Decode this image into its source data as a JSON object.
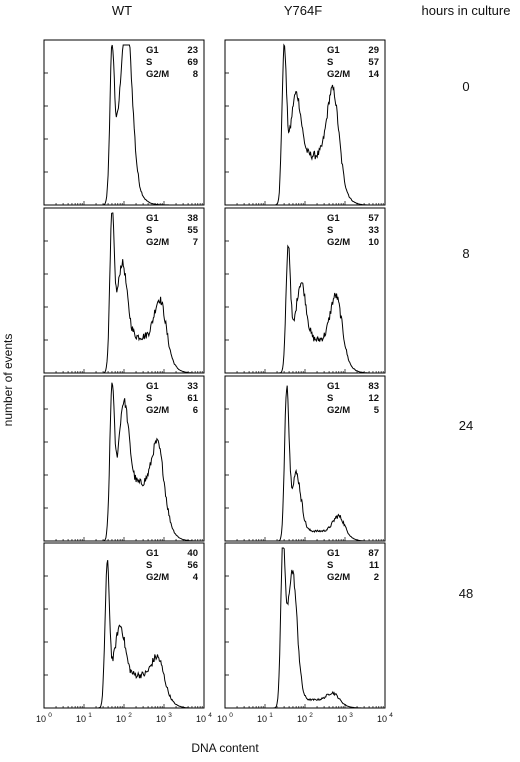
{
  "header": {
    "wt_label": "WT",
    "mutant_label": "Y764F",
    "time_header": "hours in culture"
  },
  "y_axis_label": "number of events",
  "x_axis_label": "DNA content",
  "time_points": [
    "0",
    "8",
    "24",
    "48"
  ],
  "x_tick_labels": [
    {
      "base": "10",
      "exp": "0"
    },
    {
      "base": "10",
      "exp": "1"
    },
    {
      "base": "10",
      "exp": "2"
    },
    {
      "base": "10",
      "exp": "3"
    },
    {
      "base": "10",
      "exp": "4"
    }
  ],
  "stat_names": [
    "G1",
    "S",
    "G2/M"
  ],
  "chart_data": [
    {
      "type": "area",
      "column": "WT",
      "hours": "0",
      "xscale": "log",
      "xlim": [
        1,
        10000
      ],
      "stats": {
        "G1": "23",
        "S": "69",
        "G2/M": "8"
      },
      "peak_x": 50,
      "peak_height": 0.85,
      "shoulder_x": 120,
      "shoulder_height": 0.55,
      "s_plateau": 0.42,
      "g2_x": 110,
      "g2_height": 0.26,
      "tail_end": 8000
    },
    {
      "type": "area",
      "column": "Y764F",
      "hours": "0",
      "xscale": "log",
      "xlim": [
        1,
        10000
      ],
      "stats": {
        "G1": "29",
        "S": "57",
        "G2/M": "14"
      },
      "peak_x": 30,
      "peak_height": 0.88,
      "shoulder_x": 60,
      "shoulder_height": 0.38,
      "s_plateau": 0.3,
      "g2_x": 500,
      "g2_height": 0.45,
      "tail_end": 4000
    },
    {
      "type": "area",
      "column": "WT",
      "hours": "8",
      "xscale": "log",
      "xlim": [
        1,
        10000
      ],
      "stats": {
        "G1": "38",
        "S": "55",
        "G2/M": "7"
      },
      "peak_x": 50,
      "peak_height": 0.88,
      "shoulder_x": 90,
      "shoulder_height": 0.45,
      "s_plateau": 0.22,
      "g2_x": 800,
      "g2_height": 0.26,
      "tail_end": 6000
    },
    {
      "type": "area",
      "column": "Y764F",
      "hours": "8",
      "xscale": "log",
      "xlim": [
        1,
        10000
      ],
      "stats": {
        "G1": "57",
        "S": "33",
        "G2/M": "10"
      },
      "peak_x": 38,
      "peak_height": 0.72,
      "shoulder_x": 80,
      "shoulder_height": 0.35,
      "s_plateau": 0.2,
      "g2_x": 600,
      "g2_height": 0.3,
      "tail_end": 4500
    },
    {
      "type": "area",
      "column": "WT",
      "hours": "24",
      "xscale": "log",
      "xlim": [
        1,
        10000
      ],
      "stats": {
        "G1": "33",
        "S": "61",
        "G2/M": "6"
      },
      "peak_x": 50,
      "peak_height": 0.85,
      "shoulder_x": 100,
      "shoulder_height": 0.5,
      "s_plateau": 0.35,
      "g2_x": 700,
      "g2_height": 0.3,
      "tail_end": 7000
    },
    {
      "type": "area",
      "column": "Y764F",
      "hours": "24",
      "xscale": "log",
      "xlim": [
        1,
        10000
      ],
      "stats": {
        "G1": "83",
        "S": "12",
        "G2/M": "5"
      },
      "peak_x": 35,
      "peak_height": 0.88,
      "shoulder_x": 60,
      "shoulder_height": 0.35,
      "s_plateau": 0.06,
      "g2_x": 700,
      "g2_height": 0.1,
      "tail_end": 3500
    },
    {
      "type": "area",
      "column": "WT",
      "hours": "48",
      "xscale": "log",
      "xlim": [
        1,
        10000
      ],
      "stats": {
        "G1": "40",
        "S": "56",
        "G2/M": "4"
      },
      "peak_x": 38,
      "peak_height": 0.82,
      "shoulder_x": 80,
      "shoulder_height": 0.3,
      "s_plateau": 0.2,
      "g2_x": 700,
      "g2_height": 0.14,
      "tail_end": 5000
    },
    {
      "type": "area",
      "column": "Y764F",
      "hours": "48",
      "xscale": "log",
      "xlim": [
        1,
        10000
      ],
      "stats": {
        "G1": "87",
        "S": "11",
        "G2/M": "2"
      },
      "peak_x": 28,
      "peak_height": 0.9,
      "shoulder_x": 48,
      "shoulder_height": 0.78,
      "s_plateau": 0.05,
      "g2_x": 500,
      "g2_height": 0.05,
      "tail_end": 3000
    }
  ]
}
